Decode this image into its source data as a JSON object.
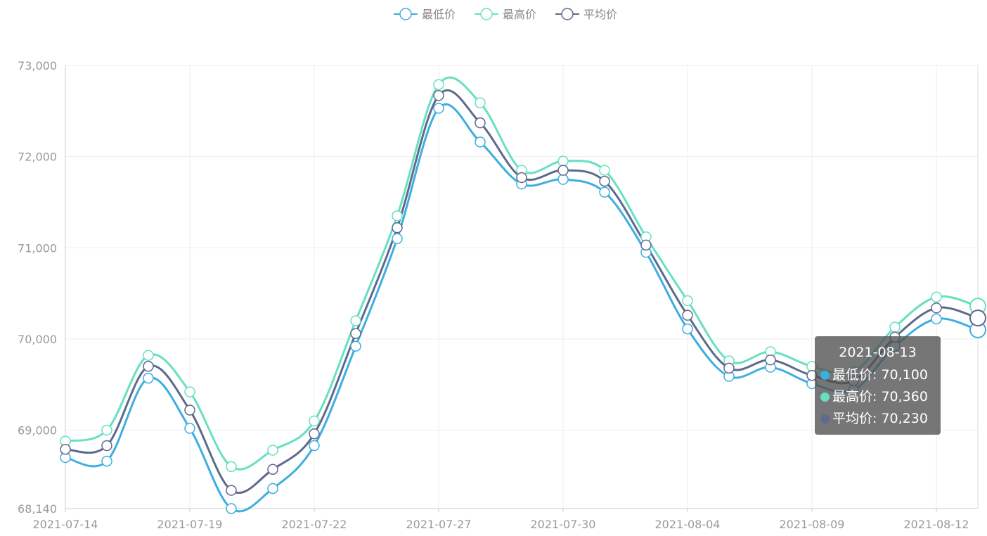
{
  "chart_data": {
    "type": "line",
    "smooth": true,
    "title": "",
    "xlabel": "",
    "ylabel": "",
    "ylim": [
      68140,
      73000
    ],
    "y_ticks": [
      68140,
      69000,
      70000,
      71000,
      72000,
      73000
    ],
    "y_tick_labels": [
      "68,140",
      "69,000",
      "70,000",
      "71,000",
      "72,000",
      "73,000"
    ],
    "x_tick_labels": [
      "2021-07-14",
      "2021-07-19",
      "2021-07-22",
      "2021-07-27",
      "2021-07-30",
      "2021-08-04",
      "2021-08-09",
      "2021-08-12"
    ],
    "x_tick_indices": [
      0,
      3,
      6,
      9,
      12,
      15,
      18,
      21
    ],
    "categories": [
      "2021-07-14",
      "2021-07-15",
      "2021-07-16",
      "2021-07-19",
      "2021-07-20",
      "2021-07-21",
      "2021-07-22",
      "2021-07-23",
      "2021-07-26",
      "2021-07-27",
      "2021-07-28",
      "2021-07-29",
      "2021-07-30",
      "2021-08-02",
      "2021-08-03",
      "2021-08-04",
      "2021-08-05",
      "2021-08-06",
      "2021-08-09",
      "2021-08-10",
      "2021-08-11",
      "2021-08-12",
      "2021-08-13"
    ],
    "legend_position": "top-center",
    "grid": true,
    "series": [
      {
        "name": "最低价",
        "color": "#3daee0",
        "values": [
          68700,
          68660,
          69570,
          69020,
          68140,
          68360,
          68830,
          69920,
          71100,
          72530,
          72160,
          71700,
          71750,
          71610,
          70950,
          70110,
          69590,
          69690,
          69510,
          69440,
          69920,
          70220,
          70100
        ]
      },
      {
        "name": "最高价",
        "color": "#67e0c2",
        "values": [
          68880,
          69000,
          69820,
          69420,
          68600,
          68780,
          69100,
          70200,
          71350,
          72790,
          72590,
          71850,
          71950,
          71850,
          71120,
          70420,
          69760,
          69860,
          69700,
          69640,
          70130,
          70460,
          70360
        ]
      },
      {
        "name": "平均价",
        "color": "#5e698c",
        "values": [
          68790,
          68830,
          69700,
          69220,
          68340,
          68570,
          68960,
          70060,
          71220,
          72670,
          72370,
          71770,
          71850,
          71730,
          71030,
          70260,
          69680,
          69770,
          69600,
          69540,
          70020,
          70340,
          70230
        ]
      }
    ]
  },
  "tooltip": {
    "title": "2021-08-13",
    "rows": [
      {
        "label": "最低价: 70,100",
        "color": "#3daee0"
      },
      {
        "label": "最高价: 70,360",
        "color": "#67e0c2"
      },
      {
        "label": "平均价: 70,230",
        "color": "#5e698c"
      }
    ]
  }
}
